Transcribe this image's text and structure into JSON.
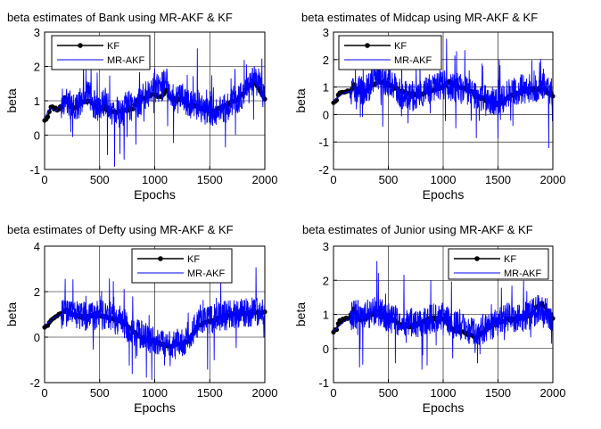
{
  "chart_data": [
    {
      "type": "line",
      "title": "beta estimates of Bank using MR-AKF & KF",
      "xlabel": "Epochs",
      "ylabel": "beta",
      "xlim": [
        0,
        2000
      ],
      "ylim": [
        -1,
        3
      ],
      "xticks": [
        "0",
        "500",
        "1000",
        "1500",
        "2000"
      ],
      "yticks": [
        "-1",
        "0",
        "1",
        "2",
        "3"
      ],
      "grid": true,
      "legend": "top-left",
      "series": [
        {
          "name": "KF",
          "style": "line-dot",
          "color": "#000000",
          "x": [
            0,
            25,
            50,
            80,
            120,
            160,
            190,
            210,
            260,
            300,
            350,
            400,
            450,
            500,
            550,
            600,
            700,
            800,
            850,
            900,
            1000,
            1050,
            1100,
            1150,
            1200,
            1250,
            1300,
            1400,
            1450,
            1500,
            1550,
            1600,
            1650,
            1700,
            1750,
            1800,
            1850,
            1900,
            1950,
            2000
          ],
          "y": [
            0.45,
            0.5,
            0.8,
            0.8,
            0.75,
            0.85,
            1.15,
            0.95,
            0.75,
            0.9,
            1.0,
            1.0,
            0.85,
            0.8,
            0.8,
            0.65,
            0.7,
            0.8,
            1.05,
            1.1,
            1.2,
            1.1,
            1.3,
            1.1,
            1.0,
            1.05,
            0.9,
            0.8,
            0.75,
            0.7,
            0.7,
            0.8,
            0.85,
            1.0,
            1.05,
            1.2,
            1.4,
            1.55,
            1.35,
            1.05
          ]
        },
        {
          "name": "MR-AKF",
          "style": "noisy-line",
          "color": "#0000ff",
          "x": [
            0,
            50,
            100,
            150,
            200,
            250,
            300,
            350,
            400,
            450,
            500,
            550,
            600,
            650,
            700,
            750,
            800,
            850,
            900,
            950,
            1000,
            1050,
            1100,
            1150,
            1200,
            1250,
            1300,
            1350,
            1400,
            1450,
            1500,
            1550,
            1600,
            1650,
            1700,
            1750,
            1800,
            1850,
            1900,
            1950,
            2000
          ],
          "y": [
            0.5,
            0.8,
            0.7,
            0.9,
            1.0,
            0.8,
            0.8,
            1.1,
            1.2,
            0.9,
            0.8,
            1.0,
            0.6,
            0.7,
            0.6,
            0.9,
            0.8,
            0.9,
            1.1,
            1.2,
            1.6,
            1.3,
            1.6,
            1.2,
            1.0,
            1.1,
            0.9,
            0.8,
            0.9,
            0.7,
            0.7,
            0.7,
            0.8,
            0.8,
            1.0,
            1.0,
            1.2,
            1.3,
            1.6,
            1.5,
            1.0
          ]
        }
      ]
    },
    {
      "type": "line",
      "title": "beta estimates of Midcap using MR-AKF & KF",
      "xlabel": "Epochs",
      "ylabel": "beta",
      "xlim": [
        0,
        2000
      ],
      "ylim": [
        -2,
        3
      ],
      "xticks": [
        "0",
        "500",
        "1000",
        "1500",
        "2000"
      ],
      "yticks": [
        "-2",
        "-1",
        "0",
        "1",
        "2",
        "3"
      ],
      "grid": true,
      "legend": "top-left",
      "series": [
        {
          "name": "KF",
          "style": "line-dot",
          "color": "#000000",
          "x": [
            0,
            25,
            50,
            100,
            150,
            190,
            210,
            250,
            300,
            350,
            400,
            450,
            500,
            550,
            600,
            700,
            800,
            900,
            1000,
            1050,
            1100,
            1150,
            1200,
            1250,
            1300,
            1400,
            1500,
            1550,
            1600,
            1700,
            1800,
            1900,
            2000
          ],
          "y": [
            0.45,
            0.5,
            0.8,
            0.8,
            0.85,
            1.1,
            0.85,
            0.8,
            0.9,
            1.05,
            1.2,
            1.15,
            1.1,
            1.0,
            0.9,
            0.75,
            0.75,
            0.9,
            1.0,
            1.2,
            1.1,
            1.0,
            0.95,
            0.85,
            0.7,
            0.5,
            0.4,
            0.45,
            0.65,
            0.8,
            0.9,
            0.95,
            0.7
          ]
        },
        {
          "name": "MR-AKF",
          "style": "noisy-line",
          "color": "#0000ff",
          "x": [
            0,
            100,
            200,
            300,
            400,
            500,
            600,
            700,
            800,
            900,
            1000,
            1100,
            1200,
            1300,
            1400,
            1500,
            1600,
            1700,
            1800,
            1900,
            2000
          ],
          "y": [
            0.5,
            0.8,
            0.9,
            0.9,
            1.4,
            1.2,
            0.8,
            0.7,
            0.7,
            1.0,
            1.1,
            1.0,
            0.9,
            0.7,
            0.5,
            0.5,
            0.8,
            0.9,
            1.0,
            1.0,
            0.8
          ]
        }
      ]
    },
    {
      "type": "line",
      "title": "beta estimates of Defty using MR-AKF & KF",
      "xlabel": "Epochs",
      "ylabel": "beta",
      "xlim": [
        0,
        2000
      ],
      "ylim": [
        -2,
        4
      ],
      "xticks": [
        "0",
        "500",
        "1000",
        "1500",
        "2000"
      ],
      "yticks": [
        "-2",
        "0",
        "2",
        "4"
      ],
      "grid": true,
      "legend": "top-right",
      "series": [
        {
          "name": "KF",
          "style": "line-dot",
          "color": "#000000",
          "x": [
            0,
            25,
            50,
            100,
            150,
            200,
            250,
            300,
            350,
            400,
            450,
            500,
            600,
            700,
            800,
            850,
            900,
            950,
            1000,
            1050,
            1100,
            1150,
            1200,
            1250,
            1300,
            1350,
            1400,
            1500,
            1600,
            1700,
            1800,
            1900,
            2000
          ],
          "y": [
            0.45,
            0.5,
            0.75,
            0.9,
            1.05,
            1.2,
            1.0,
            0.95,
            0.85,
            0.9,
            1.0,
            0.95,
            0.85,
            0.7,
            0.3,
            0.1,
            -0.1,
            -0.15,
            -0.2,
            -0.3,
            -0.35,
            -0.4,
            -0.3,
            -0.3,
            -0.2,
            0.2,
            0.5,
            0.7,
            0.85,
            1.0,
            1.05,
            1.1,
            1.1
          ]
        },
        {
          "name": "MR-AKF",
          "style": "noisy-line",
          "color": "#0000ff",
          "x": [
            0,
            100,
            200,
            300,
            400,
            500,
            600,
            700,
            800,
            900,
            1000,
            1100,
            1200,
            1300,
            1400,
            1500,
            1600,
            1700,
            1800,
            1900,
            2000
          ],
          "y": [
            0.5,
            0.9,
            1.1,
            1.0,
            0.9,
            1.0,
            0.9,
            0.6,
            0.3,
            0.0,
            -0.2,
            -0.3,
            -0.4,
            0.0,
            0.6,
            0.8,
            0.9,
            1.0,
            1.1,
            1.1,
            1.1
          ]
        }
      ]
    },
    {
      "type": "line",
      "title": "beta estimates of Junior using MR-AKF & KF",
      "xlabel": "Epochs",
      "ylabel": "beta",
      "xlim": [
        0,
        2000
      ],
      "ylim": [
        -1,
        3
      ],
      "xticks": [
        "0",
        "500",
        "1000",
        "1500",
        "2000"
      ],
      "yticks": [
        "-1",
        "0",
        "1",
        "2",
        "3"
      ],
      "grid": true,
      "legend": "top-right",
      "series": [
        {
          "name": "KF",
          "style": "line-dot",
          "color": "#000000",
          "x": [
            0,
            25,
            50,
            100,
            150,
            190,
            210,
            250,
            300,
            350,
            400,
            450,
            500,
            550,
            600,
            700,
            800,
            900,
            1000,
            1050,
            1100,
            1150,
            1200,
            1250,
            1300,
            1350,
            1400,
            1500,
            1600,
            1700,
            1800,
            1850,
            1900,
            1950,
            2000
          ],
          "y": [
            0.5,
            0.55,
            0.8,
            0.85,
            0.9,
            1.2,
            0.95,
            0.85,
            0.9,
            1.0,
            1.05,
            1.0,
            0.9,
            0.8,
            0.7,
            0.65,
            0.75,
            0.9,
            0.85,
            0.7,
            0.55,
            0.5,
            0.45,
            0.4,
            0.35,
            0.45,
            0.6,
            0.8,
            0.85,
            0.9,
            1.0,
            1.2,
            1.3,
            1.1,
            0.9
          ]
        },
        {
          "name": "MR-AKF",
          "style": "noisy-line",
          "color": "#0000ff",
          "x": [
            0,
            100,
            200,
            300,
            400,
            500,
            600,
            700,
            800,
            900,
            1000,
            1100,
            1200,
            1300,
            1400,
            1500,
            1600,
            1700,
            1800,
            1900,
            2000
          ],
          "y": [
            0.5,
            0.8,
            1.0,
            1.0,
            1.1,
            0.9,
            0.8,
            0.8,
            0.7,
            0.9,
            0.9,
            0.7,
            0.6,
            0.5,
            0.6,
            0.8,
            0.9,
            0.9,
            1.0,
            1.2,
            0.9
          ]
        }
      ]
    }
  ]
}
